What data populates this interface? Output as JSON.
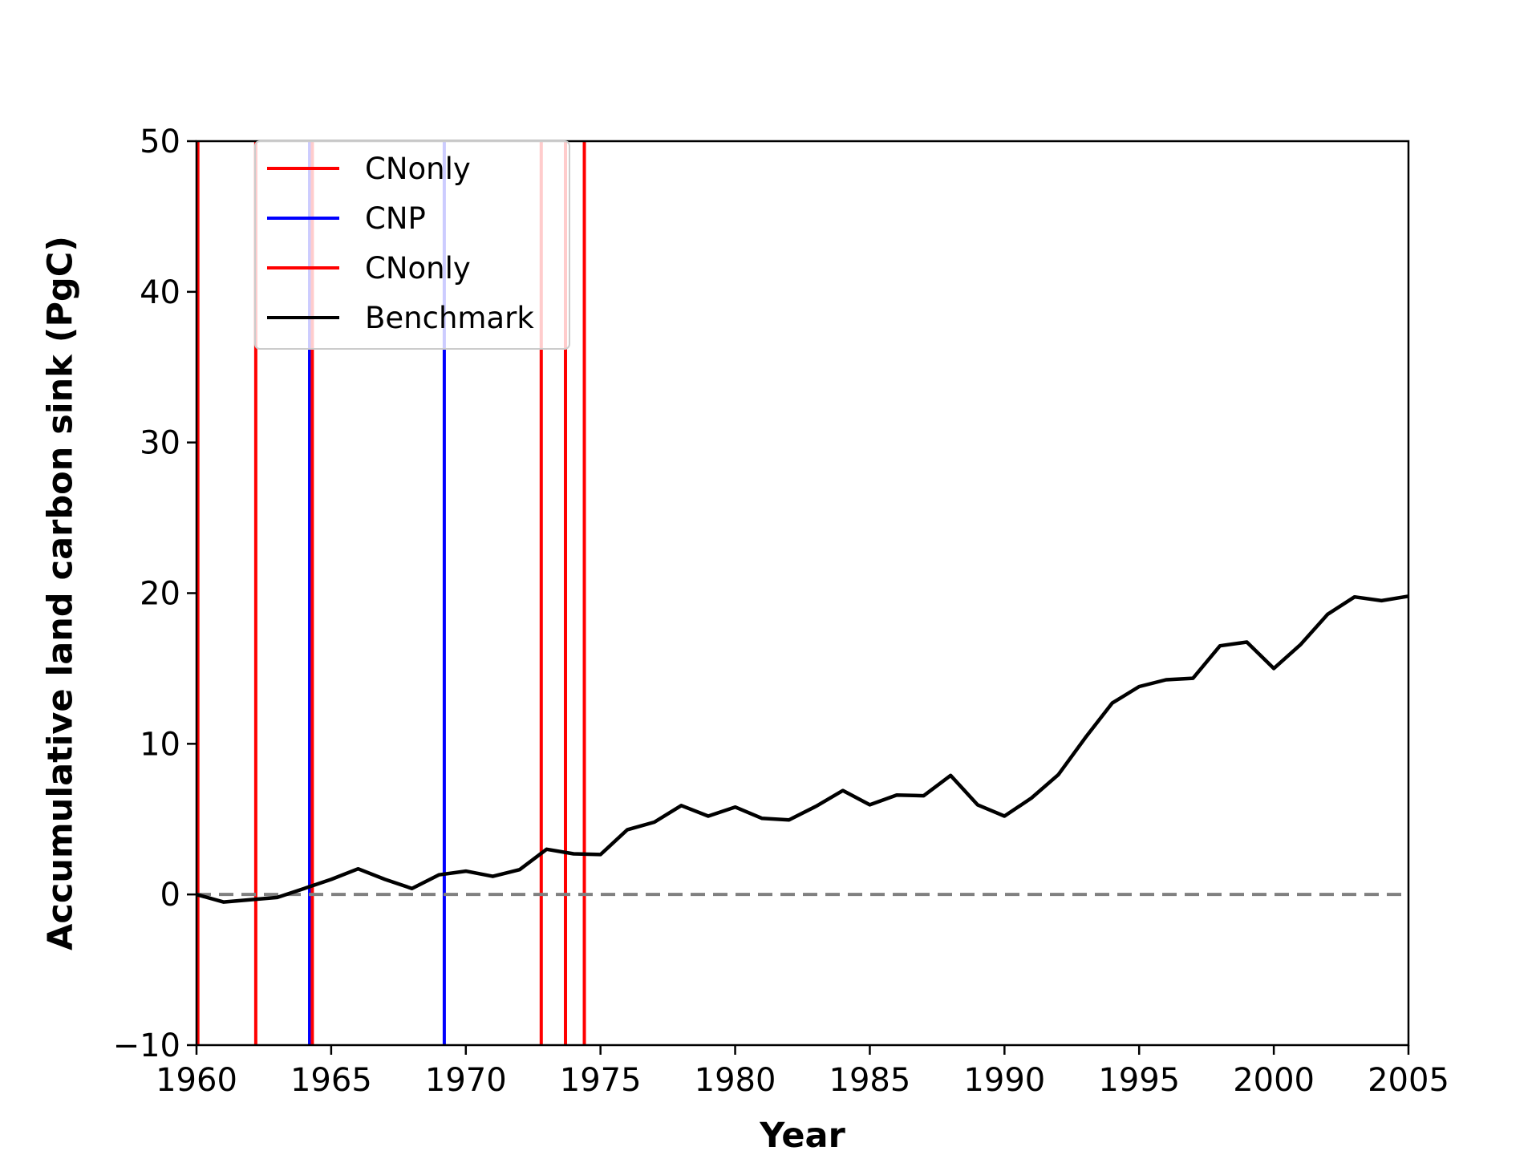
{
  "chart_data": {
    "type": "line",
    "title": "",
    "xlabel": "Year",
    "ylabel": "Accumulative land carbon sink (PgC)",
    "xlim": [
      1960,
      2005
    ],
    "ylim": [
      -10,
      50
    ],
    "xticks": [
      1960,
      1965,
      1970,
      1975,
      1980,
      1985,
      1990,
      1995,
      2000,
      2005
    ],
    "yticks": [
      -10,
      0,
      10,
      20,
      30,
      40,
      50
    ],
    "xtick_labels": [
      "1960",
      "1965",
      "1970",
      "1975",
      "1980",
      "1985",
      "1990",
      "1995",
      "2000",
      "2005"
    ],
    "ytick_labels": [
      "−10",
      "0",
      "10",
      "20",
      "30",
      "40",
      "50"
    ],
    "grid": false,
    "legend_position": "top-left",
    "legend": [
      {
        "label": "CNonly",
        "color": "#ff0000"
      },
      {
        "label": "CNP",
        "color": "#0000ff"
      },
      {
        "label": "CNonly",
        "color": "#ff0000"
      },
      {
        "label": "Benchmark",
        "color": "#000000"
      }
    ],
    "vertical_lines": [
      {
        "x": 1960.05,
        "color": "#ff0000"
      },
      {
        "x": 1962.2,
        "color": "#ff0000"
      },
      {
        "x": 1964.2,
        "color": "#0000ff"
      },
      {
        "x": 1964.3,
        "color": "#ff0000"
      },
      {
        "x": 1969.2,
        "color": "#0000ff"
      },
      {
        "x": 1972.8,
        "color": "#ff0000"
      },
      {
        "x": 1973.7,
        "color": "#ff0000"
      },
      {
        "x": 1974.4,
        "color": "#ff0000"
      }
    ],
    "reference_line": {
      "y": 0,
      "color": "#808080",
      "style": "dashed"
    },
    "series": [
      {
        "name": "Benchmark",
        "color": "#000000",
        "x": [
          1960,
          1961,
          1962,
          1963,
          1964,
          1965,
          1966,
          1967,
          1968,
          1969,
          1970,
          1971,
          1972,
          1973,
          1974,
          1975,
          1976,
          1977,
          1978,
          1979,
          1980,
          1981,
          1982,
          1983,
          1984,
          1985,
          1986,
          1987,
          1988,
          1989,
          1990,
          1991,
          1992,
          1993,
          1994,
          1995,
          1996,
          1997,
          1998,
          1999,
          2000,
          2001,
          2002,
          2003,
          2004,
          2005
        ],
        "y": [
          0.0,
          -0.5,
          -0.35,
          -0.2,
          0.4,
          1.0,
          1.7,
          1.0,
          0.4,
          1.3,
          1.55,
          1.2,
          1.65,
          3.0,
          2.7,
          2.65,
          4.3,
          4.8,
          5.9,
          5.2,
          5.8,
          5.05,
          4.95,
          5.85,
          6.9,
          5.95,
          6.6,
          6.55,
          7.9,
          5.95,
          5.2,
          6.4,
          7.95,
          10.4,
          12.7,
          13.8,
          14.25,
          14.35,
          16.5,
          16.75,
          15.0,
          16.6,
          18.6,
          19.75,
          19.5,
          19.8
        ]
      }
    ]
  }
}
